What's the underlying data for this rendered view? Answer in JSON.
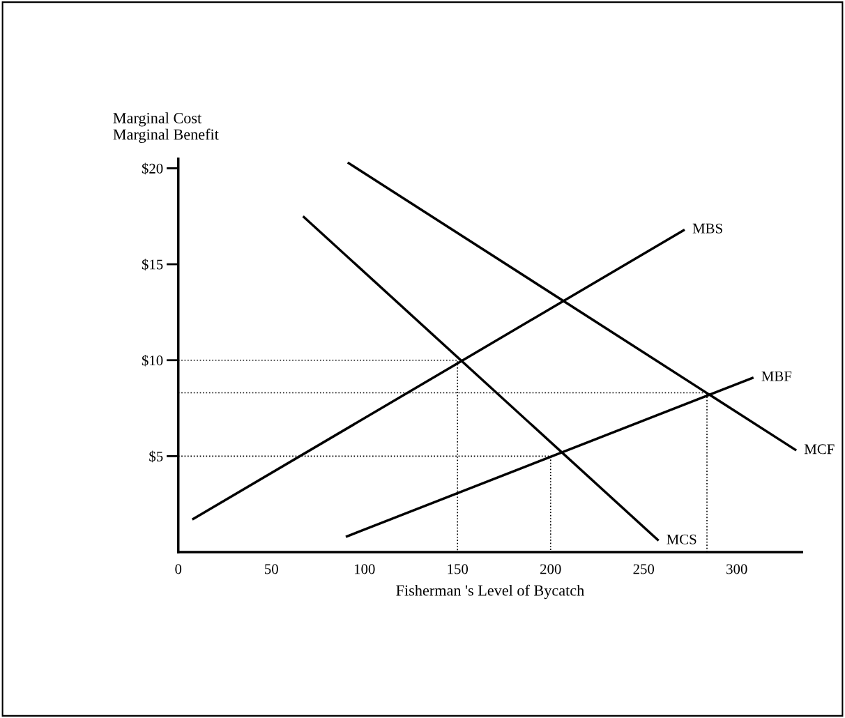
{
  "chart_data": {
    "type": "line",
    "xlabel": "Fisherman 's Level of Bycatch",
    "ylabel": "Marginal Cost\nMarginal Benefit",
    "xlim": [
      0,
      335
    ],
    "ylim": [
      0,
      20.5
    ],
    "xticks": [
      0,
      50,
      100,
      150,
      200,
      250,
      300
    ],
    "yticks": [
      {
        "value": 5,
        "label": "$5"
      },
      {
        "value": 10,
        "label": "$10"
      },
      {
        "value": 15,
        "label": "$15"
      },
      {
        "value": 20,
        "label": "$20"
      }
    ],
    "grid": false,
    "marker": "none",
    "series": [
      {
        "name": "MBS",
        "color": "#000000",
        "x": [
          7.5,
          272
        ],
        "values": [
          1.7,
          16.8
        ],
        "line_style": "solid"
      },
      {
        "name": "MCS",
        "color": "#000000",
        "x": [
          67,
          258
        ],
        "values": [
          17.5,
          0.6
        ],
        "line_style": "solid"
      },
      {
        "name": "MCF",
        "color": "#000000",
        "x": [
          91,
          332
        ],
        "values": [
          20.3,
          5.3
        ],
        "line_style": "solid"
      },
      {
        "name": "MBF",
        "color": "#000000",
        "x": [
          90,
          309
        ],
        "values": [
          0.8,
          9.1
        ],
        "line_style": "solid"
      },
      {
        "color": "#000000",
        "x": [
          0,
          150,
          150
        ],
        "values": [
          10,
          10,
          0
        ],
        "line_style": "dotted"
      },
      {
        "color": "#000000",
        "x": [
          0,
          284,
          284
        ],
        "values": [
          8.3,
          8.3,
          0
        ],
        "line_style": "dotted"
      },
      {
        "color": "#000000",
        "x": [
          0,
          200,
          200
        ],
        "values": [
          5,
          5,
          0
        ],
        "line_style": "dotted"
      }
    ]
  }
}
